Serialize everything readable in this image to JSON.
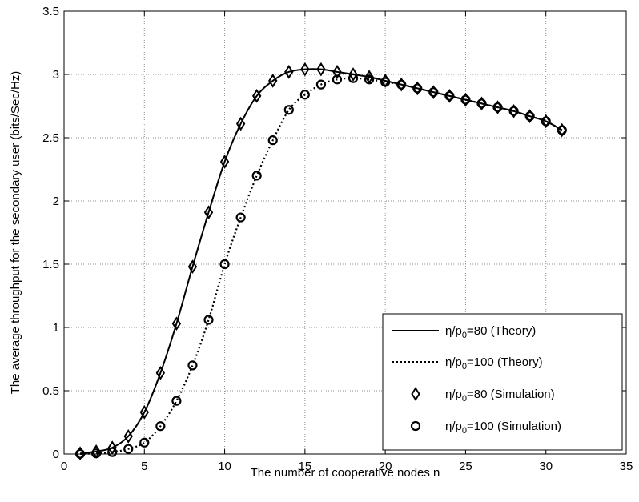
{
  "chart_data": {
    "type": "line",
    "xlabel": "The number of cooperative nodes n",
    "ylabel": "The average throughput for the secondary user (bits/Sec/Hz)",
    "xlim": [
      0,
      35
    ],
    "ylim": [
      0,
      3.5
    ],
    "xticks": [
      0,
      5,
      10,
      15,
      20,
      25,
      30,
      35
    ],
    "yticks": [
      0,
      0.5,
      1,
      1.5,
      2,
      2.5,
      3,
      3.5
    ],
    "xtick_labels": [
      "0",
      "5",
      "10",
      "15",
      "20",
      "25",
      "30",
      "35"
    ],
    "ytick_labels": [
      "0",
      "0.5",
      "1",
      "1.5",
      "2",
      "2.5",
      "3",
      "3.5"
    ],
    "grid": true,
    "legend_position": "bottom-right",
    "x": [
      1,
      2,
      3,
      4,
      5,
      6,
      7,
      8,
      9,
      10,
      11,
      12,
      13,
      14,
      15,
      16,
      17,
      18,
      19,
      20,
      21,
      22,
      23,
      24,
      25,
      26,
      27,
      28,
      29,
      30,
      31
    ],
    "series": [
      {
        "label_prefix": "η/p",
        "label_sub": "0",
        "label_suffix": "=80 (Theory)",
        "style": "solid",
        "marker": "none",
        "values": [
          0.005,
          0.02,
          0.05,
          0.14,
          0.33,
          0.64,
          1.03,
          1.48,
          1.91,
          2.31,
          2.61,
          2.83,
          2.95,
          3.02,
          3.04,
          3.04,
          3.02,
          3.0,
          2.98,
          2.95,
          2.92,
          2.89,
          2.86,
          2.83,
          2.8,
          2.77,
          2.74,
          2.71,
          2.67,
          2.63,
          2.56
        ]
      },
      {
        "label_prefix": "η/p",
        "label_sub": "0",
        "label_suffix": "=100 (Theory)",
        "style": "dotted",
        "marker": "none",
        "values": [
          0.001,
          0.005,
          0.015,
          0.04,
          0.09,
          0.22,
          0.42,
          0.7,
          1.06,
          1.5,
          1.87,
          2.2,
          2.48,
          2.72,
          2.84,
          2.92,
          2.96,
          2.97,
          2.96,
          2.94,
          2.92,
          2.89,
          2.86,
          2.83,
          2.8,
          2.77,
          2.74,
          2.71,
          2.67,
          2.63,
          2.56
        ]
      },
      {
        "label_prefix": "η/p",
        "label_sub": "0",
        "label_suffix": "=80 (Simulation)",
        "style": "none",
        "marker": "diamond",
        "values": [
          0.005,
          0.02,
          0.05,
          0.14,
          0.33,
          0.64,
          1.03,
          1.48,
          1.91,
          2.31,
          2.61,
          2.83,
          2.95,
          3.02,
          3.04,
          3.04,
          3.02,
          3.0,
          2.98,
          2.95,
          2.92,
          2.89,
          2.86,
          2.83,
          2.8,
          2.77,
          2.74,
          2.71,
          2.67,
          2.63,
          2.56
        ]
      },
      {
        "label_prefix": "η/p",
        "label_sub": "0",
        "label_suffix": "=100 (Simulation)",
        "style": "none",
        "marker": "circle",
        "values": [
          0.001,
          0.005,
          0.015,
          0.04,
          0.09,
          0.22,
          0.42,
          0.7,
          1.06,
          1.5,
          1.87,
          2.2,
          2.48,
          2.72,
          2.84,
          2.92,
          2.96,
          2.97,
          2.96,
          2.94,
          2.92,
          2.89,
          2.86,
          2.83,
          2.8,
          2.77,
          2.74,
          2.71,
          2.67,
          2.63,
          2.56
        ]
      }
    ]
  }
}
